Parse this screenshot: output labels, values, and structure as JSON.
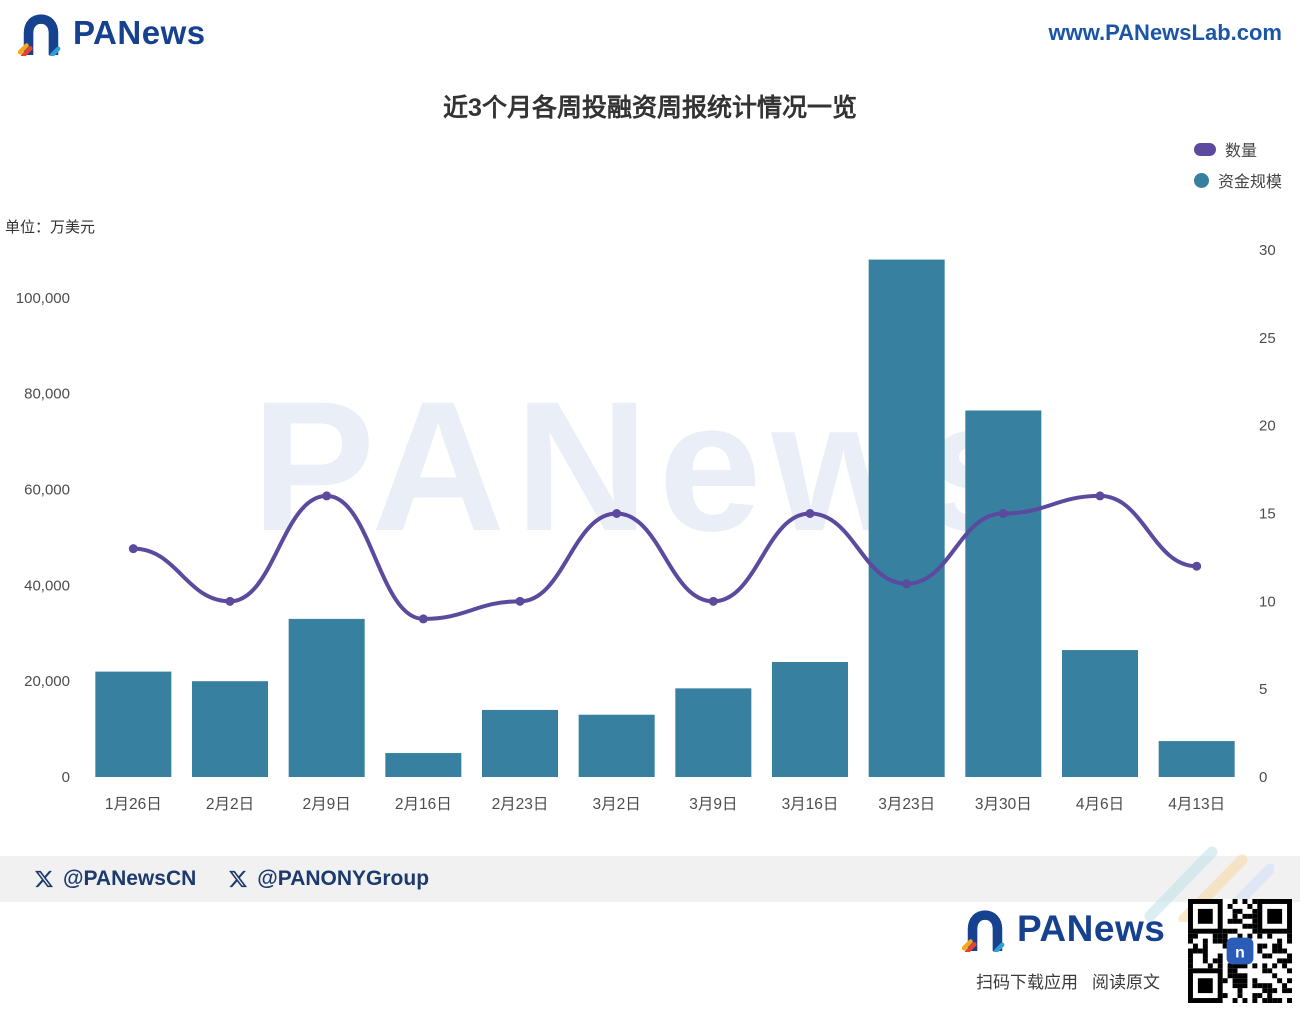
{
  "header": {
    "brand": "PANews",
    "site_url": "www.PANewsLab.com"
  },
  "chart_data": {
    "type": "bar",
    "combo": "bar+line",
    "title": "近3个月各周投融资周报统计情况一览",
    "unit_label": "单位：万美元",
    "watermark": "PANews",
    "categories": [
      "1月26日",
      "2月2日",
      "2月9日",
      "2月16日",
      "2月23日",
      "3月2日",
      "3月9日",
      "3月16日",
      "3月23日",
      "3月30日",
      "4月6日",
      "4月13日"
    ],
    "series": [
      {
        "name": "数量",
        "type": "line",
        "axis": "right",
        "color": "#5b4a9e",
        "values": [
          13,
          10,
          16,
          9,
          10,
          15,
          10,
          15,
          11,
          15,
          16,
          12
        ]
      },
      {
        "name": "资金规模",
        "type": "bar",
        "axis": "left",
        "color": "#38809f",
        "values": [
          22000,
          20000,
          33000,
          5000,
          14000,
          13000,
          18500,
          24000,
          108000,
          76500,
          26500,
          7500
        ]
      }
    ],
    "left_axis": {
      "label": "单位：万美元",
      "ticks": [
        0,
        20000,
        40000,
        60000,
        80000,
        100000
      ],
      "max": 110000
    },
    "right_axis": {
      "ticks": [
        0,
        5,
        10,
        15,
        20,
        25,
        30
      ],
      "max": 30
    },
    "legend_position": "top-right",
    "grid": false
  },
  "legend": [
    {
      "label": "数量",
      "color": "#5b4a9e",
      "shape": "ellipse"
    },
    {
      "label": "资金规模",
      "color": "#38809f",
      "shape": "circle"
    }
  ],
  "footer": {
    "handles": [
      "@PANewsCN",
      "@PANONYGroup"
    ],
    "brand": "PANews",
    "caption_download": "扫码下载应用",
    "caption_read": "阅读原文"
  }
}
